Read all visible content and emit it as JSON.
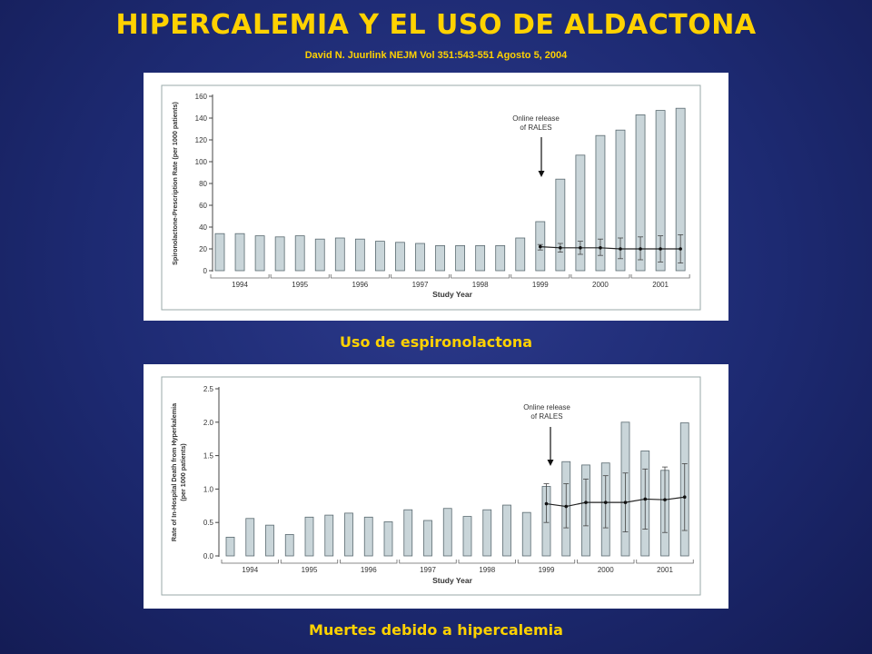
{
  "header": {
    "title": "HIPERCALEMIA Y EL USO DE ALDACTONA",
    "subtitle": "David N. Juurlink NEJM Vol 351:543-551 Agosto 5, 2004"
  },
  "colors": {
    "background": "#1d2a72",
    "title": "#ffd200",
    "bar_fill": "#c9d5d9",
    "bar_stroke": "#5a6a70"
  },
  "chart_data": [
    {
      "type": "bar",
      "caption": "Uso de espironolactona",
      "ylabel": "Spironolactone-Prescription Rate (per 1000 patients)",
      "xlabel": "Study Year",
      "annotation": "Online release\nof RALES",
      "ylim": [
        0,
        160
      ],
      "yticks": [
        "0",
        "20",
        "40",
        "60",
        "80",
        "100",
        "120",
        "140",
        "160"
      ],
      "year_labels": [
        "1994",
        "1995",
        "1996",
        "1997",
        "1998",
        "1999",
        "2000",
        "2001"
      ],
      "annotation_after_quarter": 16,
      "values": [
        34,
        34,
        32,
        31,
        32,
        29,
        30,
        29,
        27,
        26,
        25,
        23,
        23,
        23,
        23,
        30,
        45,
        84,
        106,
        124,
        129,
        143,
        147,
        149
      ],
      "expected": {
        "start_index": 16,
        "values": [
          22,
          21,
          21,
          21,
          20,
          20,
          20,
          20
        ],
        "ci_low": [
          19,
          17,
          15,
          14,
          11,
          10,
          8,
          7
        ],
        "ci_high": [
          24,
          25,
          27,
          29,
          30,
          31,
          32,
          33
        ]
      },
      "grid": false
    },
    {
      "type": "bar",
      "caption": "Muertes debido a hipercalemia",
      "ylabel": "Rate of In-Hospital Death from Hyperkalemia (per 1000 patients)",
      "xlabel": "Study Year",
      "annotation": "Online release\nof RALES",
      "ylim": [
        0,
        2.5
      ],
      "yticks": [
        "0.0",
        "0.5",
        "1.0",
        "1.5",
        "2.0",
        "2.5"
      ],
      "year_labels": [
        "1994",
        "1995",
        "1996",
        "1997",
        "1998",
        "1999",
        "2000",
        "2001"
      ],
      "annotation_after_quarter": 16,
      "values": [
        0.28,
        0.56,
        0.46,
        0.32,
        0.58,
        0.61,
        0.64,
        0.58,
        0.51,
        0.69,
        0.53,
        0.71,
        0.59,
        0.69,
        0.76,
        0.65,
        1.04,
        1.41,
        1.36,
        1.39,
        2.0,
        1.57,
        1.28,
        1.99
      ],
      "expected": {
        "start_index": 16,
        "values": [
          0.78,
          0.74,
          0.8,
          0.8,
          0.8,
          0.85,
          0.84,
          0.88
        ],
        "ci_low": [
          0.5,
          0.42,
          0.45,
          0.42,
          0.36,
          0.4,
          0.35,
          0.38
        ],
        "ci_high": [
          1.08,
          1.08,
          1.15,
          1.2,
          1.24,
          1.3,
          1.33,
          1.38
        ]
      },
      "grid": false
    }
  ]
}
